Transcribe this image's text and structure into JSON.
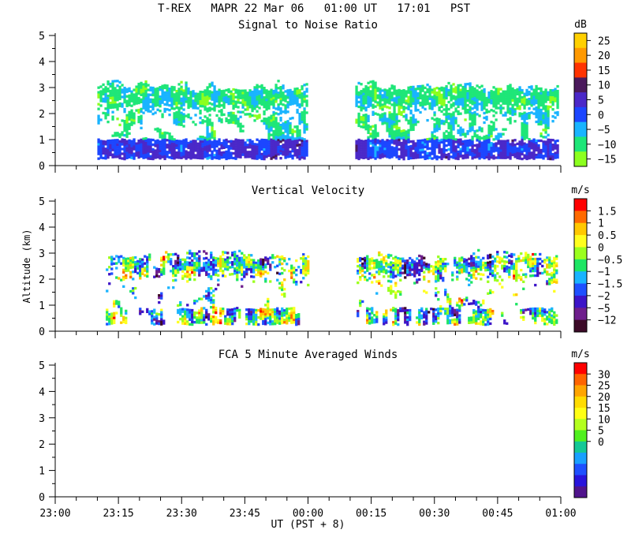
{
  "header": {
    "title": "T-REX   MAPR 22 Mar 06   01:00 UT   17:01   PST"
  },
  "x_axis": {
    "label": "UT  (PST + 8)",
    "ticks": [
      "23:00",
      "23:15",
      "23:30",
      "23:45",
      "00:00",
      "00:15",
      "00:30",
      "00:45",
      "01:00"
    ],
    "range_minutes": [
      0,
      120
    ],
    "gap_minutes": [
      60,
      71
    ]
  },
  "y_axis": {
    "label": "Altitude (km)",
    "ticks": [
      "0",
      "1",
      "2",
      "3",
      "4",
      "5"
    ],
    "range_km": [
      0,
      5
    ]
  },
  "chart_data": [
    {
      "type": "heatmap",
      "id": "snr",
      "title": "Signal to Noise Ratio",
      "unit": "dB",
      "scale_labels": [
        "25",
        "20",
        "15",
        "10",
        "5",
        "0",
        "−5",
        "−10",
        "−15"
      ],
      "colors": [
        "#ffd000",
        "#ff9900",
        "#ff3300",
        "#4b1a5c",
        "#4b28c8",
        "#1c46ff",
        "#19b4ff",
        "#1ee678",
        "#8cff1e"
      ],
      "coverage": {
        "x_minutes": [
          10,
          119
        ],
        "z_km": [
          0.3,
          3.3
        ]
      }
    },
    {
      "type": "heatmap",
      "id": "vertical-velocity",
      "title": "Vertical Velocity",
      "unit": "m/s",
      "scale_labels": [
        "1.5",
        "1",
        "0.5",
        "0",
        "−0.5",
        "−1",
        "−1.5",
        "−2",
        "−5",
        "−12"
      ],
      "colors": [
        "#ff0000",
        "#ff6a00",
        "#ffc800",
        "#ffff1e",
        "#9bff1e",
        "#1ee664",
        "#19b4ff",
        "#1e50ff",
        "#3c14c8",
        "#6e1e8c",
        "#3c0a28"
      ],
      "coverage": {
        "x_minutes": [
          12,
          119
        ],
        "z_km": [
          0.3,
          3.2
        ]
      }
    },
    {
      "type": "heatmap",
      "id": "fca-winds",
      "title": "FCA 5 Minute Averaged Winds",
      "unit": "m/s",
      "scale_labels": [
        "30",
        "25",
        "20",
        "15",
        "10",
        "5",
        "0"
      ],
      "colors": [
        "#ff0000",
        "#ff6400",
        "#ffa500",
        "#ffdc00",
        "#ffff14",
        "#b4ff1e",
        "#50f01e",
        "#14c896",
        "#19a0ff",
        "#1e50ff",
        "#2814dc",
        "#50148c"
      ],
      "coverage": null
    }
  ]
}
